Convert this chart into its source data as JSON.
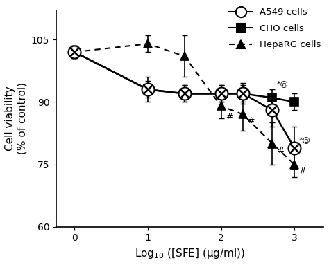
{
  "title": "",
  "xlabel": "Log$_{10}$ ([SFE] (μg/ml))",
  "ylabel": "Cell viability\n(% of control)",
  "xlim": [
    -0.25,
    3.4
  ],
  "ylim": [
    60,
    112
  ],
  "yticks": [
    60,
    75,
    90,
    105
  ],
  "xticks": [
    0,
    1,
    2,
    3
  ],
  "x": [
    0,
    1,
    1.5,
    2,
    2.3,
    2.7,
    3
  ],
  "A549_y": [
    102,
    93,
    92,
    92,
    92,
    88,
    79
  ],
  "A549_yerr": [
    1.5,
    3,
    2,
    2,
    2.5,
    4,
    5
  ],
  "CHO_y": [
    102,
    93,
    92,
    92,
    92,
    91,
    90
  ],
  "CHO_yerr": [
    1.5,
    2,
    2,
    2,
    2,
    2,
    2
  ],
  "HepaRG_y": [
    102,
    104,
    101,
    89,
    87,
    80,
    75
  ],
  "HepaRG_yerr": [
    1.5,
    2,
    5,
    3,
    4,
    5,
    3
  ],
  "background_color": "#ffffff",
  "line_color": "#000000",
  "legend_labels": [
    "A549 cells",
    "CHO cells",
    "HepaRG cells"
  ]
}
